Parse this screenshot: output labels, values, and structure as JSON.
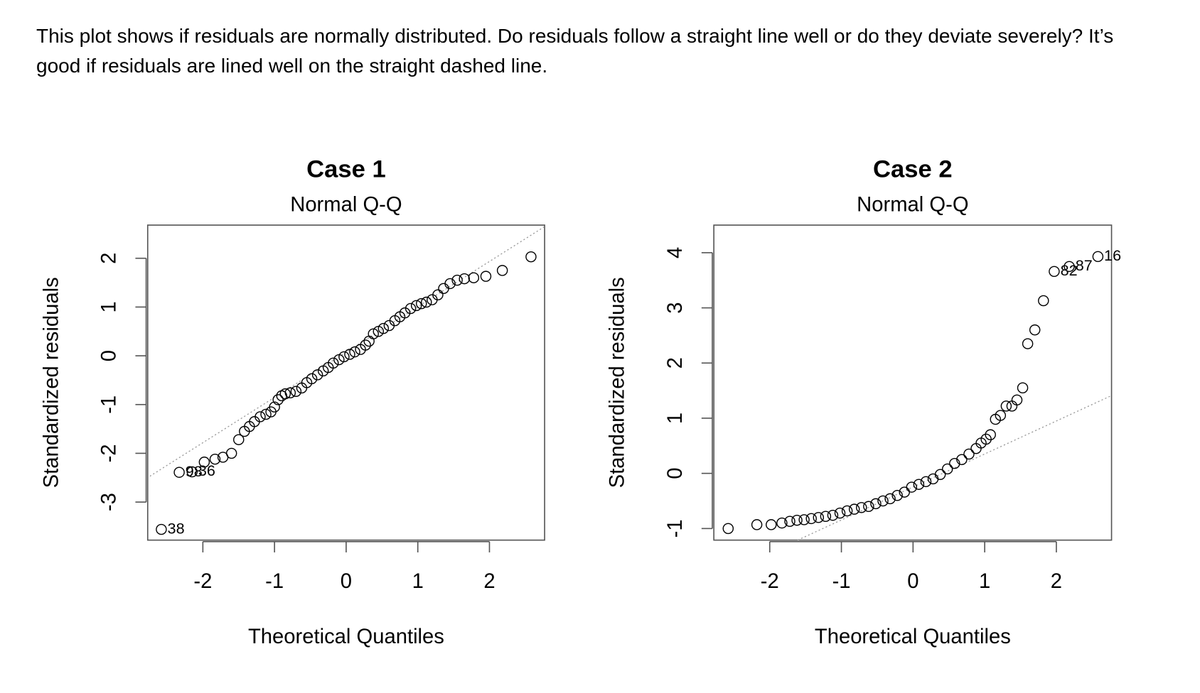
{
  "description": "This plot shows if residuals are normally distributed. Do residuals follow a straight line well or do they deviate severely? It’s good if residuals are lined well on the straight dashed line.",
  "chart_data": [
    {
      "type": "scatter",
      "title": "Case 1",
      "subtitle": "Normal Q-Q",
      "x_label": "Theoretical Quantiles",
      "y_label": "Standardized residuals",
      "xlim": [
        -2.77,
        2.77
      ],
      "ylim": [
        -3.78,
        2.68
      ],
      "xticks": [
        -2,
        -1,
        0,
        1,
        2
      ],
      "yticks": [
        -3,
        -2,
        -1,
        0,
        1,
        2
      ],
      "color": "#000000",
      "reference_line": {
        "x": [
          -2.74,
          2.77
        ],
        "y": [
          -2.47,
          2.65
        ]
      },
      "x": [
        -2.58,
        -2.33,
        -2.15,
        -1.98,
        -1.83,
        -1.72,
        -1.6,
        -1.5,
        -1.42,
        -1.35,
        -1.28,
        -1.2,
        -1.12,
        -1.05,
        -1.0,
        -0.95,
        -0.9,
        -0.85,
        -0.78,
        -0.7,
        -0.62,
        -0.55,
        -0.48,
        -0.4,
        -0.32,
        -0.25,
        -0.18,
        -0.1,
        -0.03,
        0.05,
        0.12,
        0.2,
        0.27,
        0.32,
        0.38,
        0.45,
        0.52,
        0.6,
        0.68,
        0.75,
        0.82,
        0.9,
        0.98,
        1.05,
        1.12,
        1.2,
        1.28,
        1.36,
        1.45,
        1.55,
        1.65,
        1.78,
        1.95,
        2.18,
        2.58
      ],
      "y": [
        -3.56,
        -2.39,
        -2.38,
        -2.18,
        -2.12,
        -2.08,
        -2.0,
        -1.72,
        -1.55,
        -1.45,
        -1.35,
        -1.25,
        -1.2,
        -1.15,
        -1.05,
        -0.9,
        -0.82,
        -0.78,
        -0.76,
        -0.73,
        -0.66,
        -0.55,
        -0.47,
        -0.39,
        -0.31,
        -0.24,
        -0.15,
        -0.08,
        -0.02,
        0.03,
        0.08,
        0.13,
        0.22,
        0.3,
        0.45,
        0.5,
        0.56,
        0.62,
        0.72,
        0.8,
        0.88,
        0.97,
        1.03,
        1.07,
        1.1,
        1.15,
        1.25,
        1.38,
        1.48,
        1.55,
        1.58,
        1.6,
        1.63,
        1.75,
        2.03
      ],
      "point_labels": [
        "38",
        "98",
        "36",
        null,
        null,
        null,
        null,
        null,
        null,
        null,
        null,
        null,
        null,
        null,
        null,
        null,
        null,
        null,
        null,
        null,
        null,
        null,
        null,
        null,
        null,
        null,
        null,
        null,
        null,
        null,
        null,
        null,
        null,
        null,
        null,
        null,
        null,
        null,
        null,
        null,
        null,
        null,
        null,
        null,
        null,
        null,
        null,
        null,
        null,
        null,
        null,
        null,
        null,
        null,
        null
      ]
    },
    {
      "type": "scatter",
      "title": "Case 2",
      "subtitle": "Normal Q-Q",
      "x_label": "Theoretical Quantiles",
      "y_label": "Standardized residuals",
      "xlim": [
        -2.78,
        2.77
      ],
      "ylim": [
        -1.21,
        4.5
      ],
      "xticks": [
        -2,
        -1,
        0,
        1,
        2
      ],
      "yticks": [
        -1,
        0,
        1,
        2,
        3,
        4
      ],
      "color": "#000000",
      "reference_line": {
        "x": [
          -1.61,
          2.77
        ],
        "y": [
          -1.21,
          1.41
        ]
      },
      "x": [
        -2.58,
        -2.18,
        -1.98,
        -1.83,
        -1.72,
        -1.62,
        -1.52,
        -1.42,
        -1.32,
        -1.22,
        -1.12,
        -1.02,
        -0.92,
        -0.82,
        -0.72,
        -0.62,
        -0.52,
        -0.42,
        -0.32,
        -0.22,
        -0.12,
        -0.02,
        0.08,
        0.18,
        0.28,
        0.38,
        0.48,
        0.58,
        0.68,
        0.78,
        0.88,
        0.95,
        1.02,
        1.08,
        1.15,
        1.22,
        1.3,
        1.38,
        1.45,
        1.53,
        1.6,
        1.7,
        1.82,
        1.97,
        2.18,
        2.58
      ],
      "y": [
        -1.0,
        -0.93,
        -0.93,
        -0.9,
        -0.87,
        -0.85,
        -0.84,
        -0.82,
        -0.8,
        -0.78,
        -0.76,
        -0.72,
        -0.68,
        -0.65,
        -0.62,
        -0.6,
        -0.55,
        -0.5,
        -0.46,
        -0.4,
        -0.34,
        -0.25,
        -0.2,
        -0.15,
        -0.1,
        -0.02,
        0.08,
        0.18,
        0.25,
        0.35,
        0.45,
        0.55,
        0.62,
        0.7,
        0.98,
        1.05,
        1.22,
        1.22,
        1.33,
        1.55,
        2.35,
        2.6,
        3.13,
        3.66,
        3.75,
        3.93
      ],
      "point_labels": [
        null,
        null,
        null,
        null,
        null,
        null,
        null,
        null,
        null,
        null,
        null,
        null,
        null,
        null,
        null,
        null,
        null,
        null,
        null,
        null,
        null,
        null,
        null,
        null,
        null,
        null,
        null,
        null,
        null,
        null,
        null,
        null,
        null,
        null,
        null,
        null,
        null,
        null,
        null,
        null,
        null,
        null,
        null,
        "82",
        "87",
        "16"
      ]
    }
  ]
}
